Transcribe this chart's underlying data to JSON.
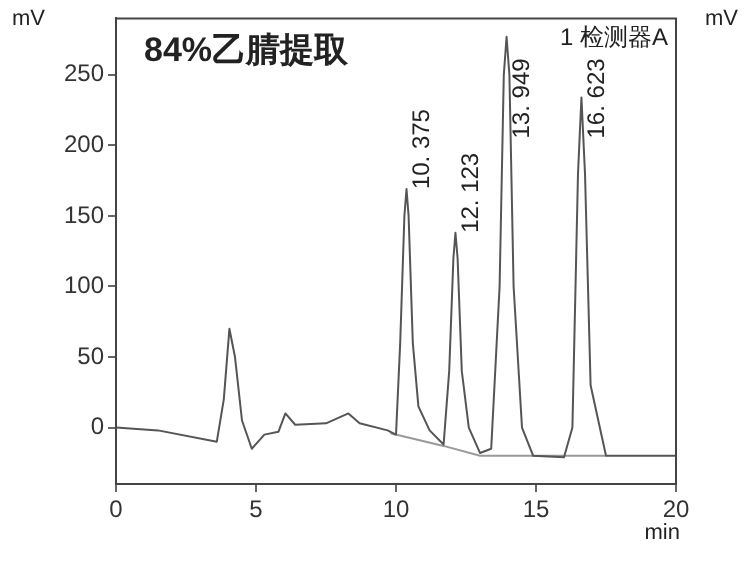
{
  "chart_data": {
    "type": "line",
    "title": "84%乙腈提取",
    "ylabel": "mV",
    "y2label": "mV",
    "xlabel": "min",
    "annotations": [
      "1 检测器A",
      {
        "text": "10. 375",
        "x": 10.375,
        "y": 169
      },
      {
        "text": "12. 123",
        "x": 12.123,
        "y": 138
      },
      {
        "text": "13. 949",
        "x": 13.949,
        "y": 277
      },
      {
        "text": "16. 623",
        "x": 16.623,
        "y": 234
      }
    ],
    "xlim": [
      0,
      20
    ],
    "xticks": [
      0,
      5,
      10,
      15,
      20
    ],
    "ylim": [
      -40,
      290
    ],
    "yticks": [
      0,
      50,
      100,
      150,
      200,
      250
    ],
    "grid": false,
    "legend": false,
    "marker": "none",
    "line_style": "solid",
    "series": [
      {
        "color": "#555555",
        "x": [
          0,
          1.5,
          3.6,
          3.85,
          4.05,
          4.25,
          4.5,
          4.85,
          5.3,
          5.8,
          6.05,
          6.4,
          7.5,
          8.3,
          8.7,
          9.7,
          10.0,
          10.15,
          10.3,
          10.375,
          10.45,
          10.6,
          10.8,
          11.2,
          11.7,
          11.9,
          12.05,
          12.123,
          12.2,
          12.35,
          12.6,
          13.0,
          13.4,
          13.7,
          13.85,
          13.949,
          14.05,
          14.2,
          14.5,
          14.9,
          16.0,
          16.3,
          16.5,
          16.623,
          16.75,
          16.95,
          17.5,
          20
        ],
        "values": [
          0,
          -2,
          -10,
          20,
          70,
          50,
          5,
          -15,
          -5,
          -3,
          10,
          2,
          3,
          10,
          3,
          -2,
          -5,
          60,
          150,
          169,
          150,
          60,
          15,
          -2,
          -12,
          40,
          120,
          138,
          120,
          40,
          0,
          -18,
          -15,
          100,
          250,
          277,
          250,
          100,
          0,
          -20,
          -21,
          0,
          180,
          234,
          180,
          30,
          -20,
          -20
        ]
      },
      {
        "color": "#999999",
        "x": [
          9.8,
          11.7,
          13.0,
          17.5
        ],
        "values": [
          -4,
          -13,
          -20,
          -20
        ]
      }
    ]
  }
}
